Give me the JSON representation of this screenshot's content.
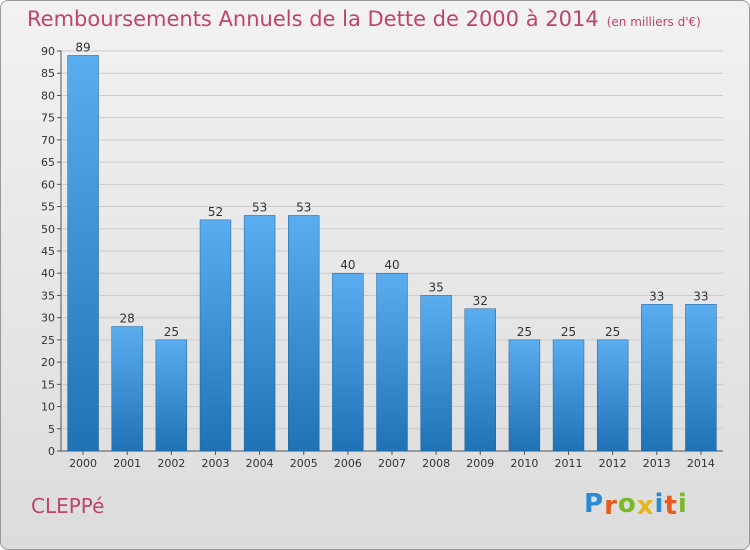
{
  "title": "Remboursements Annuels de la Dette de 2000 à 2014",
  "subtitle": "(en milliers d'€)",
  "town": "CLEPPé",
  "logo": {
    "letters": [
      "P",
      "r",
      "o",
      "x",
      "i",
      "t",
      "i"
    ],
    "colors": [
      "#2a8ad4",
      "#e85a1e",
      "#79b928",
      "#e8b41e",
      "#2a8ad4",
      "#e85a1e",
      "#79b928"
    ]
  },
  "colors": {
    "bar_top": "#5aaef0",
    "bar_bottom": "#1f72b5",
    "title": "#c0446a",
    "grid": "#cccccc"
  },
  "chart_data": {
    "type": "bar",
    "categories": [
      "2000",
      "2001",
      "2002",
      "2003",
      "2004",
      "2005",
      "2006",
      "2007",
      "2008",
      "2009",
      "2010",
      "2011",
      "2012",
      "2013",
      "2014"
    ],
    "values": [
      89,
      28,
      25,
      52,
      53,
      53,
      40,
      40,
      35,
      32,
      25,
      25,
      25,
      33,
      33
    ],
    "ylim": [
      0,
      90
    ],
    "yticks": [
      0,
      5,
      10,
      15,
      20,
      25,
      30,
      35,
      40,
      45,
      50,
      55,
      60,
      65,
      70,
      75,
      80,
      85,
      90
    ],
    "grid": true,
    "data_labels": true
  }
}
